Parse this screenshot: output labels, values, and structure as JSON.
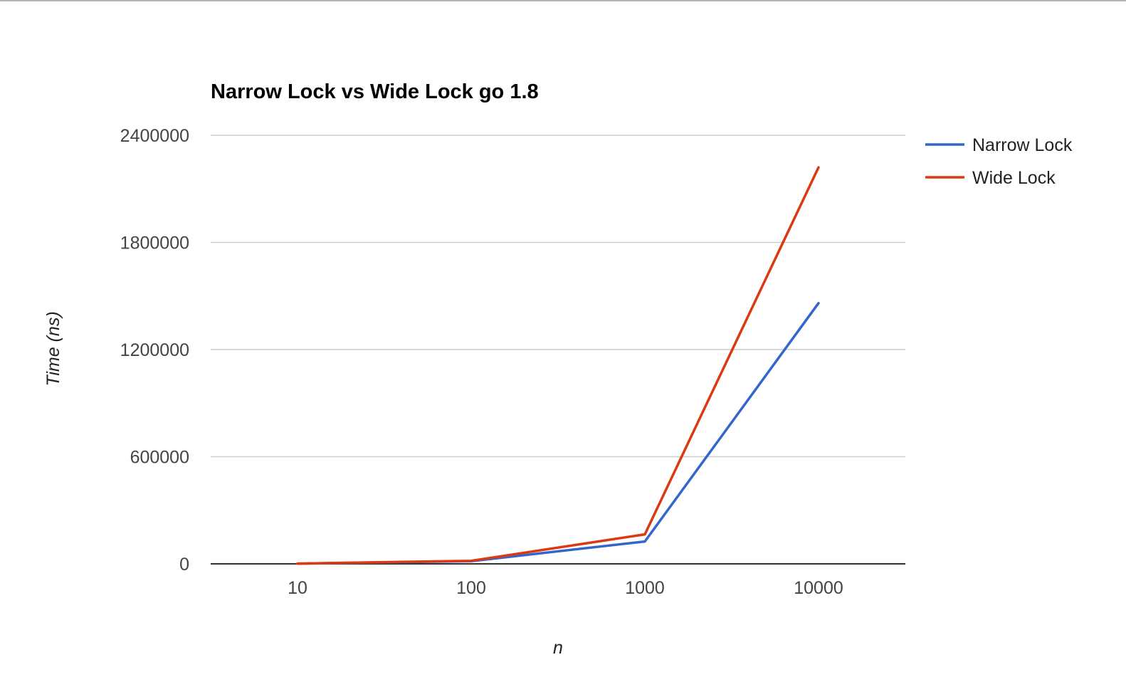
{
  "chart_data": {
    "type": "line",
    "title": "Narrow Lock vs Wide Lock go 1.8",
    "xlabel": "n",
    "ylabel": "Time (ns)",
    "categories": [
      "10",
      "100",
      "1000",
      "10000"
    ],
    "ylim": [
      0,
      2400000
    ],
    "yticks": [
      "0",
      "600000",
      "1200000",
      "1800000",
      "2400000"
    ],
    "grid": true,
    "legend_position": "right",
    "series": [
      {
        "name": "Narrow Lock",
        "color": "#3366cc",
        "values": [
          1000,
          15000,
          125000,
          1460000
        ]
      },
      {
        "name": "Wide Lock",
        "color": "#dc3912",
        "values": [
          1500,
          17000,
          165000,
          2220000
        ]
      }
    ]
  }
}
